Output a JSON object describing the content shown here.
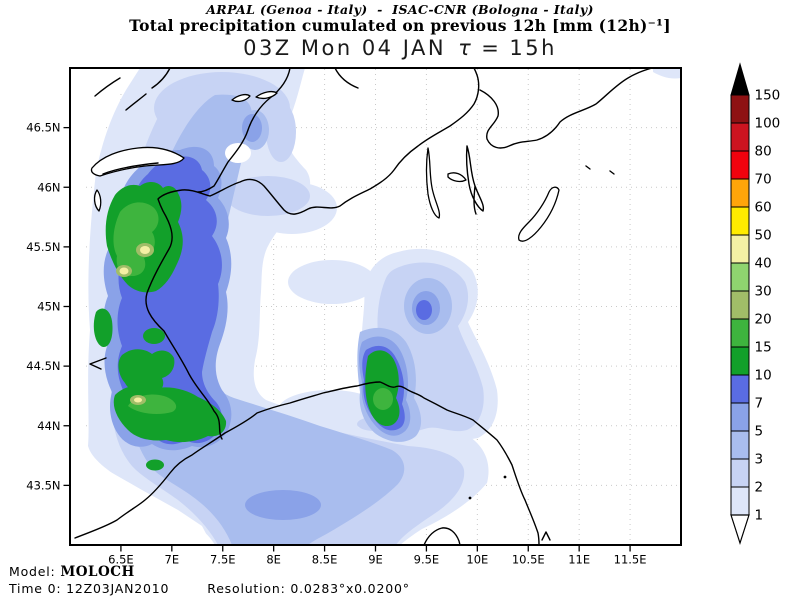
{
  "header": {
    "line1": "ARPAL (Genoa - Italy)  -  ISAC-CNR (Bologna - Italy)",
    "line2": "Total precipitation cumulated on previous 12h [mm (12h)⁻¹]",
    "title_prefix": "03Z Mon 04 JAN",
    "title_tau": "τ",
    "title_eq": "=",
    "title_value": "15h"
  },
  "footer": {
    "model_label": "Model: ",
    "model_value": "MOLOCH",
    "time_label": "Time 0: ",
    "time_value": "12Z03JAN2010",
    "res_label": "Resolution: ",
    "res_value": "0.0283°x0.0200°"
  },
  "axes": {
    "x_ticks": [
      {
        "label": "6.5E",
        "lon": 6.5
      },
      {
        "label": "7E",
        "lon": 7.0
      },
      {
        "label": "7.5E",
        "lon": 7.5
      },
      {
        "label": "8E",
        "lon": 8.0
      },
      {
        "label": "8.5E",
        "lon": 8.5
      },
      {
        "label": "9E",
        "lon": 9.0
      },
      {
        "label": "9.5E",
        "lon": 9.5
      },
      {
        "label": "10E",
        "lon": 10.0
      },
      {
        "label": "10.5E",
        "lon": 10.5
      },
      {
        "label": "11E",
        "lon": 11.0
      },
      {
        "label": "11.5E",
        "lon": 11.5
      }
    ],
    "y_ticks": [
      {
        "label": "46.5N",
        "lat": 46.5
      },
      {
        "label": "46N",
        "lat": 46.0
      },
      {
        "label": "45.5N",
        "lat": 45.5
      },
      {
        "label": "45N",
        "lat": 45.0
      },
      {
        "label": "44.5N",
        "lat": 44.5
      },
      {
        "label": "44N",
        "lat": 44.0
      },
      {
        "label": "43.5N",
        "lat": 43.5
      }
    ]
  },
  "colorbar": {
    "labels_top_to_bottom": [
      "150",
      "100",
      "80",
      "70",
      "60",
      "50",
      "40",
      "30",
      "20",
      "15",
      "10",
      "7",
      "5",
      "3",
      "2",
      "1"
    ],
    "cell_colors_top_to_bottom": [
      "#8e1113",
      "#cc1420",
      "#f1020e",
      "#ffa50a",
      "#ffeb00",
      "#f4f0a4",
      "#8fd46f",
      "#a1bd68",
      "#3eb43e",
      "#12a02a",
      "#5a6ce2",
      "#8aa2e8",
      "#a9bdee",
      "#c7d3f4",
      "#dee6f9"
    ],
    "over_arrow_color": "#000000",
    "under_arrow_color": "#ffffff"
  },
  "palette": {
    "1": "#dee6f9",
    "2": "#c7d3f4",
    "3": "#a9bdee",
    "5": "#8aa2e8",
    "7": "#5a6ce2",
    "10": "#12a02a",
    "15": "#3eb43e",
    "20": "#a1bd68",
    "40": "#f4f0a4"
  },
  "chart_data": {
    "type": "filled-contour precipitation map",
    "institutions": "ARPAL (Genoa - Italy) - ISAC-CNR (Bologna - Italy)",
    "variable": "Total precipitation cumulated on previous 12h",
    "units": "mm (12h)⁻¹",
    "valid_time": "03Z Mon 04 JAN",
    "forecast_lead_tau": "15h",
    "model": "MOLOCH",
    "init_time": "12Z03JAN2010",
    "resolution": "0.0283°x0.0200°",
    "lon_range_deg_e": [
      6.0,
      12.0
    ],
    "lat_range_deg_n": [
      43.0,
      47.0
    ],
    "contour_levels_mm": [
      1,
      2,
      3,
      5,
      7,
      10,
      15,
      20,
      30,
      40,
      50,
      60,
      70,
      80,
      100,
      150
    ],
    "features": [
      {
        "area": "French-Italian Alps band (6.6-7.7E, 43.9-46.3N)",
        "precip_mm": "10-20 widespread, local spots 20-40"
      },
      {
        "area": "near Genoa (8.8-9.1E, 44.3-44.6N)",
        "precip_mm": "10-20"
      },
      {
        "area": "Ligurian Sea south of coast (6.5-9.3E, 43-44.2N)",
        "precip_mm": "1-7"
      },
      {
        "area": "patch over NW Po valley (~9.3-9.6E, 44.7-45.5N)",
        "precip_mm": "1-7"
      },
      {
        "area": "east of ~10E and SE quadrant",
        "precip_mm": "<1 (dry)"
      }
    ]
  }
}
